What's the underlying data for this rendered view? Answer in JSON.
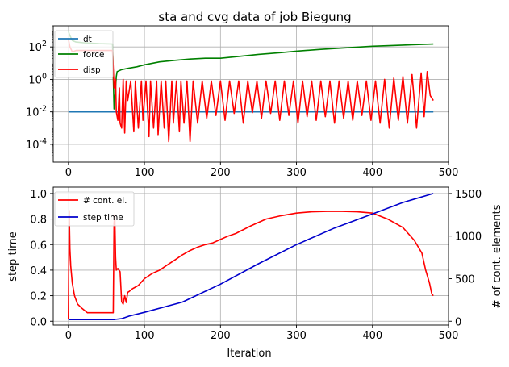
{
  "chart_data": [
    {
      "type": "line",
      "title": "sta and cvg data of job Biegung",
      "xlabel": "",
      "ylabel": "",
      "yscale": "log",
      "xlim": [
        -20,
        500
      ],
      "ylim": [
        8e-06,
        2000
      ],
      "xticks": [
        0,
        100,
        200,
        300,
        400,
        500
      ],
      "yticks": [
        0.0001,
        0.01,
        1,
        100
      ],
      "ytick_labels": [
        "10^-4",
        "10^-2",
        "10^0",
        "10^2"
      ],
      "legend_position": "top-left",
      "grid": true,
      "series": [
        {
          "name": "dt",
          "color": "#1f77b4",
          "x": [
            0,
            480
          ],
          "y": [
            0.01,
            0.01
          ]
        },
        {
          "name": "force",
          "color": "#008000",
          "x": [
            0,
            2,
            5,
            10,
            20,
            40,
            58,
            60,
            62,
            63,
            64,
            70,
            80,
            90,
            100,
            120,
            140,
            160,
            180,
            200,
            220,
            250,
            280,
            300,
            330,
            360,
            400,
            440,
            480
          ],
          "y": [
            900,
            500,
            250,
            200,
            180,
            160,
            150,
            0.015,
            0.3,
            1.5,
            3,
            4,
            5,
            6,
            8,
            12,
            15,
            18,
            20,
            20,
            25,
            35,
            45,
            55,
            70,
            85,
            110,
            130,
            150
          ]
        },
        {
          "name": "disp",
          "color": "#ff0000",
          "x": [
            0,
            2,
            5,
            10,
            20,
            40,
            58,
            60,
            62,
            63,
            65,
            67,
            68,
            70,
            72,
            74,
            76,
            78,
            82,
            86,
            88,
            92,
            96,
            98,
            102,
            106,
            108,
            112,
            116,
            118,
            122,
            126,
            128,
            132,
            136,
            138,
            142,
            146,
            148,
            152,
            156,
            160,
            164,
            170,
            176,
            182,
            188,
            194,
            200,
            206,
            212,
            218,
            224,
            230,
            236,
            242,
            248,
            254,
            260,
            266,
            272,
            278,
            284,
            290,
            296,
            302,
            308,
            314,
            320,
            326,
            332,
            338,
            344,
            350,
            356,
            362,
            368,
            374,
            380,
            386,
            392,
            398,
            404,
            410,
            416,
            422,
            428,
            434,
            440,
            446,
            452,
            458,
            464,
            468,
            472,
            476,
            480
          ],
          "y": [
            300,
            100,
            50,
            60,
            60,
            60,
            60,
            0.3,
            1,
            0.01,
            0.003,
            0.3,
            0.002,
            0.001,
            1,
            0.0005,
            0.8,
            0.05,
            0.8,
            0.0006,
            0.8,
            0.001,
            0.8,
            0.003,
            0.8,
            0.0003,
            0.8,
            0.001,
            0.8,
            0.0004,
            0.8,
            0.001,
            0.8,
            0.00015,
            0.8,
            0.002,
            0.8,
            0.0006,
            0.8,
            0.002,
            0.8,
            0.00015,
            0.8,
            0.002,
            0.8,
            0.004,
            0.8,
            0.006,
            0.8,
            0.003,
            0.8,
            0.008,
            0.8,
            0.002,
            0.8,
            0.009,
            0.8,
            0.004,
            0.8,
            0.008,
            0.8,
            0.003,
            0.8,
            0.006,
            0.8,
            0.002,
            0.8,
            0.005,
            0.8,
            0.003,
            0.8,
            0.005,
            0.8,
            0.002,
            0.8,
            0.004,
            0.8,
            0.003,
            0.8,
            0.006,
            0.8,
            0.003,
            0.8,
            0.002,
            1,
            0.001,
            1.2,
            0.003,
            1.5,
            0.002,
            2,
            0.001,
            2.5,
            0.005,
            3,
            0.1,
            0.05
          ]
        }
      ]
    },
    {
      "type": "line",
      "title": "",
      "xlabel": "Iteration",
      "ylabel": "step time",
      "y2label": "# of cont. elements",
      "xlim": [
        -20,
        500
      ],
      "ylim": [
        -0.03,
        1.05
      ],
      "y2lim": [
        -45,
        1575
      ],
      "xticks": [
        0,
        100,
        200,
        300,
        400,
        500
      ],
      "yticks": [
        0.0,
        0.2,
        0.4,
        0.6,
        0.8,
        1.0
      ],
      "ytick_labels": [
        "0.0",
        "0.2",
        "0.4",
        "0.6",
        "0.8",
        "1.0"
      ],
      "y2ticks": [
        0,
        500,
        1000,
        1500
      ],
      "legend_position": "top-left",
      "grid": true,
      "series": [
        {
          "name": "# cont. el.",
          "color": "#ff0000",
          "axis": "y2",
          "x": [
            0,
            1,
            2,
            3,
            5,
            8,
            12,
            18,
            25,
            35,
            45,
            55,
            59,
            60,
            61,
            62,
            63,
            65,
            68,
            70,
            72,
            74,
            76,
            78,
            80,
            84,
            88,
            92,
            96,
            100,
            110,
            120,
            130,
            140,
            150,
            160,
            170,
            180,
            190,
            200,
            210,
            220,
            240,
            260,
            280,
            300,
            320,
            340,
            360,
            380,
            400,
            420,
            440,
            455,
            465,
            470,
            475,
            478,
            480
          ],
          "y": [
            30,
            1300,
            850,
            650,
            450,
            300,
            200,
            150,
            100,
            100,
            100,
            100,
            100,
            1150,
            1250,
            750,
            600,
            620,
            580,
            230,
            200,
            300,
            220,
            340,
            350,
            380,
            400,
            420,
            460,
            500,
            560,
            600,
            660,
            720,
            780,
            830,
            870,
            900,
            920,
            960,
            1000,
            1030,
            1120,
            1200,
            1240,
            1270,
            1285,
            1290,
            1290,
            1285,
            1270,
            1200,
            1100,
            950,
            800,
            600,
            450,
            320,
            300
          ]
        },
        {
          "name": "step time",
          "color": "#0000cc",
          "axis": "y",
          "x": [
            0,
            30,
            60,
            61,
            70,
            80,
            100,
            150,
            200,
            250,
            300,
            350,
            400,
            440,
            480
          ],
          "y": [
            0.013,
            0.013,
            0.013,
            0.014,
            0.02,
            0.04,
            0.07,
            0.15,
            0.29,
            0.45,
            0.6,
            0.73,
            0.84,
            0.93,
            1.0
          ]
        }
      ]
    }
  ]
}
